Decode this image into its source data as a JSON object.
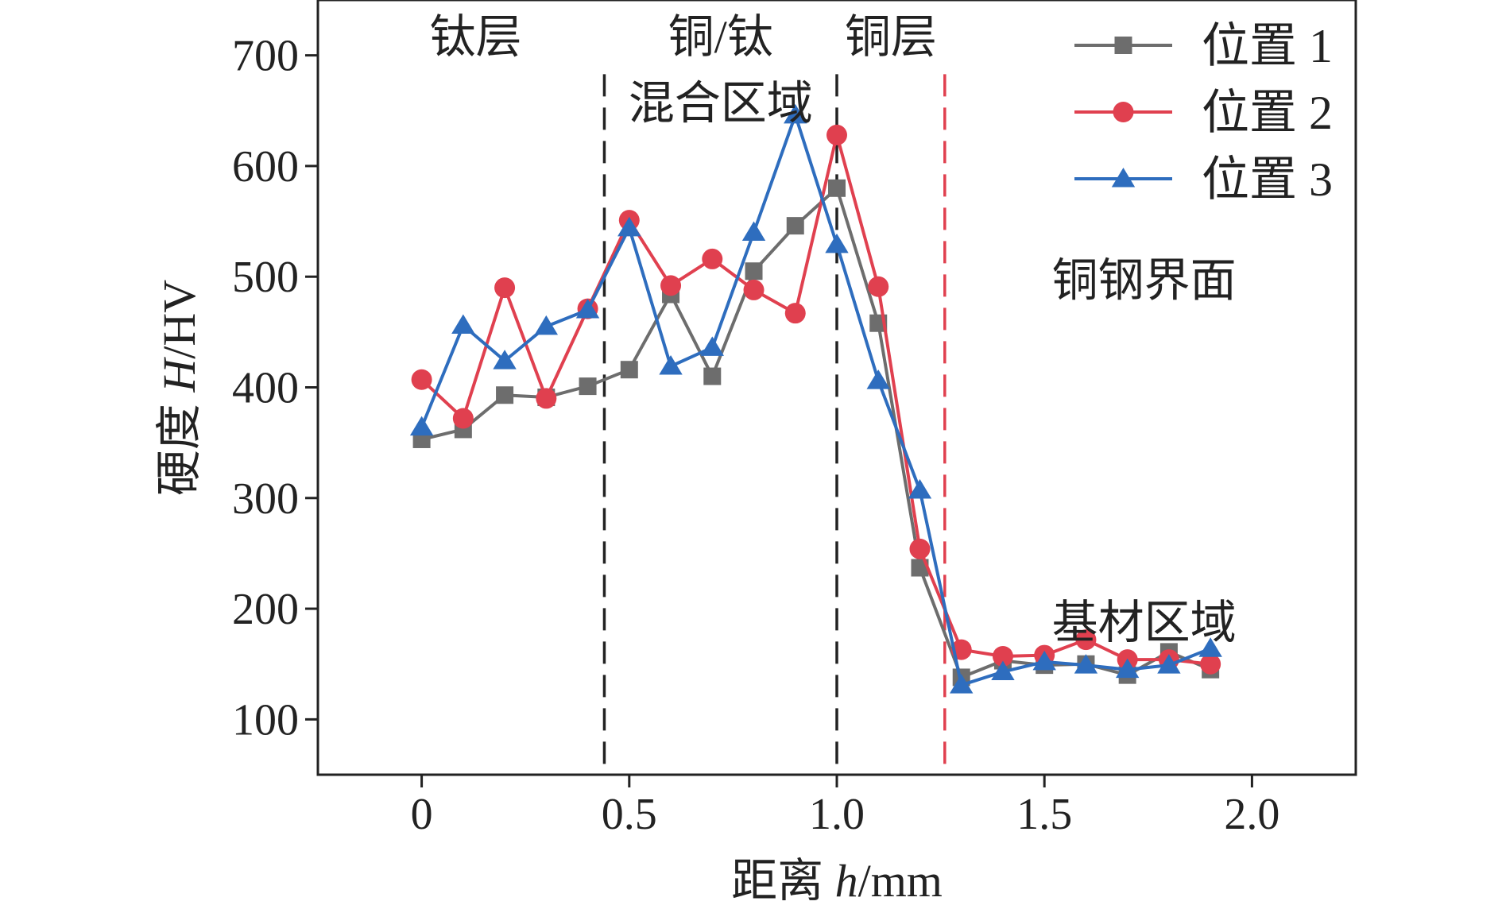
{
  "chart_data": {
    "type": "line",
    "title": "",
    "xlabel": {
      "prefix": "距离 ",
      "var": "h",
      "unit": "/mm"
    },
    "ylabel": {
      "prefix": "硬度 ",
      "var": "H",
      "unit": "/HV"
    },
    "xlim": [
      -0.25,
      2.25
    ],
    "ylim": [
      50,
      750
    ],
    "xticks": [
      0,
      0.5,
      1.0,
      1.5,
      2.0
    ],
    "xtick_labels": [
      "0",
      "0.5",
      "1.0",
      "1.5",
      "2.0"
    ],
    "yticks": [
      100,
      200,
      300,
      400,
      500,
      600,
      700
    ],
    "ytick_labels": [
      "100",
      "200",
      "300",
      "400",
      "500",
      "600",
      "700"
    ],
    "x": [
      0,
      0.1,
      0.2,
      0.3,
      0.4,
      0.5,
      0.6,
      0.7,
      0.8,
      0.9,
      1.0,
      1.1,
      1.2,
      1.3,
      1.4,
      1.5,
      1.6,
      1.7,
      1.8,
      1.9
    ],
    "series": [
      {
        "name": "位置 1",
        "color": "#6d6d6d",
        "marker": "square",
        "values": [
          353,
          362,
          393,
          391,
          401,
          416,
          484,
          410,
          505,
          546,
          580,
          458,
          237,
          138,
          153,
          149,
          150,
          140,
          161,
          145
        ]
      },
      {
        "name": "位置 2",
        "color": "#e0404f",
        "marker": "circle",
        "values": [
          407,
          372,
          490,
          390,
          471,
          551,
          492,
          516,
          488,
          467,
          628,
          491,
          254,
          163,
          157,
          158,
          172,
          154,
          154,
          150
        ]
      },
      {
        "name": "位置 3",
        "color": "#2e6dbe",
        "marker": "triangle",
        "values": [
          364,
          456,
          424,
          455,
          470,
          544,
          419,
          436,
          540,
          646,
          529,
          406,
          307,
          131,
          143,
          152,
          149,
          145,
          149,
          164
        ]
      }
    ],
    "reference_lines": [
      {
        "x": 0.44,
        "color": "#222222"
      },
      {
        "x": 1.0,
        "color": "#222222"
      },
      {
        "x": 1.26,
        "color": "#e0404f"
      }
    ],
    "region_labels": [
      {
        "text": "钛层",
        "x": 0.13,
        "y": 717
      },
      {
        "text": "铜/钛",
        "x": 0.72,
        "y": 717
      },
      {
        "text": "混合区域",
        "x": 0.72,
        "y": 657
      },
      {
        "text": "铜层",
        "x": 1.13,
        "y": 717
      },
      {
        "text": "铜钢界面",
        "x": 1.74,
        "y": 497
      },
      {
        "text": "基材区域",
        "x": 1.74,
        "y": 188
      }
    ],
    "legend_position": "top-right"
  }
}
